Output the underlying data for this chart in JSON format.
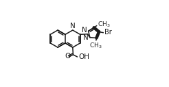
{
  "bg_color": "#ffffff",
  "line_color": "#1a1a1a",
  "line_width": 1.1,
  "font_size": 7.0,
  "figsize": [
    2.46,
    1.27
  ],
  "dpi": 100,
  "xlim": [
    0.0,
    1.0
  ],
  "ylim": [
    0.0,
    1.0
  ]
}
